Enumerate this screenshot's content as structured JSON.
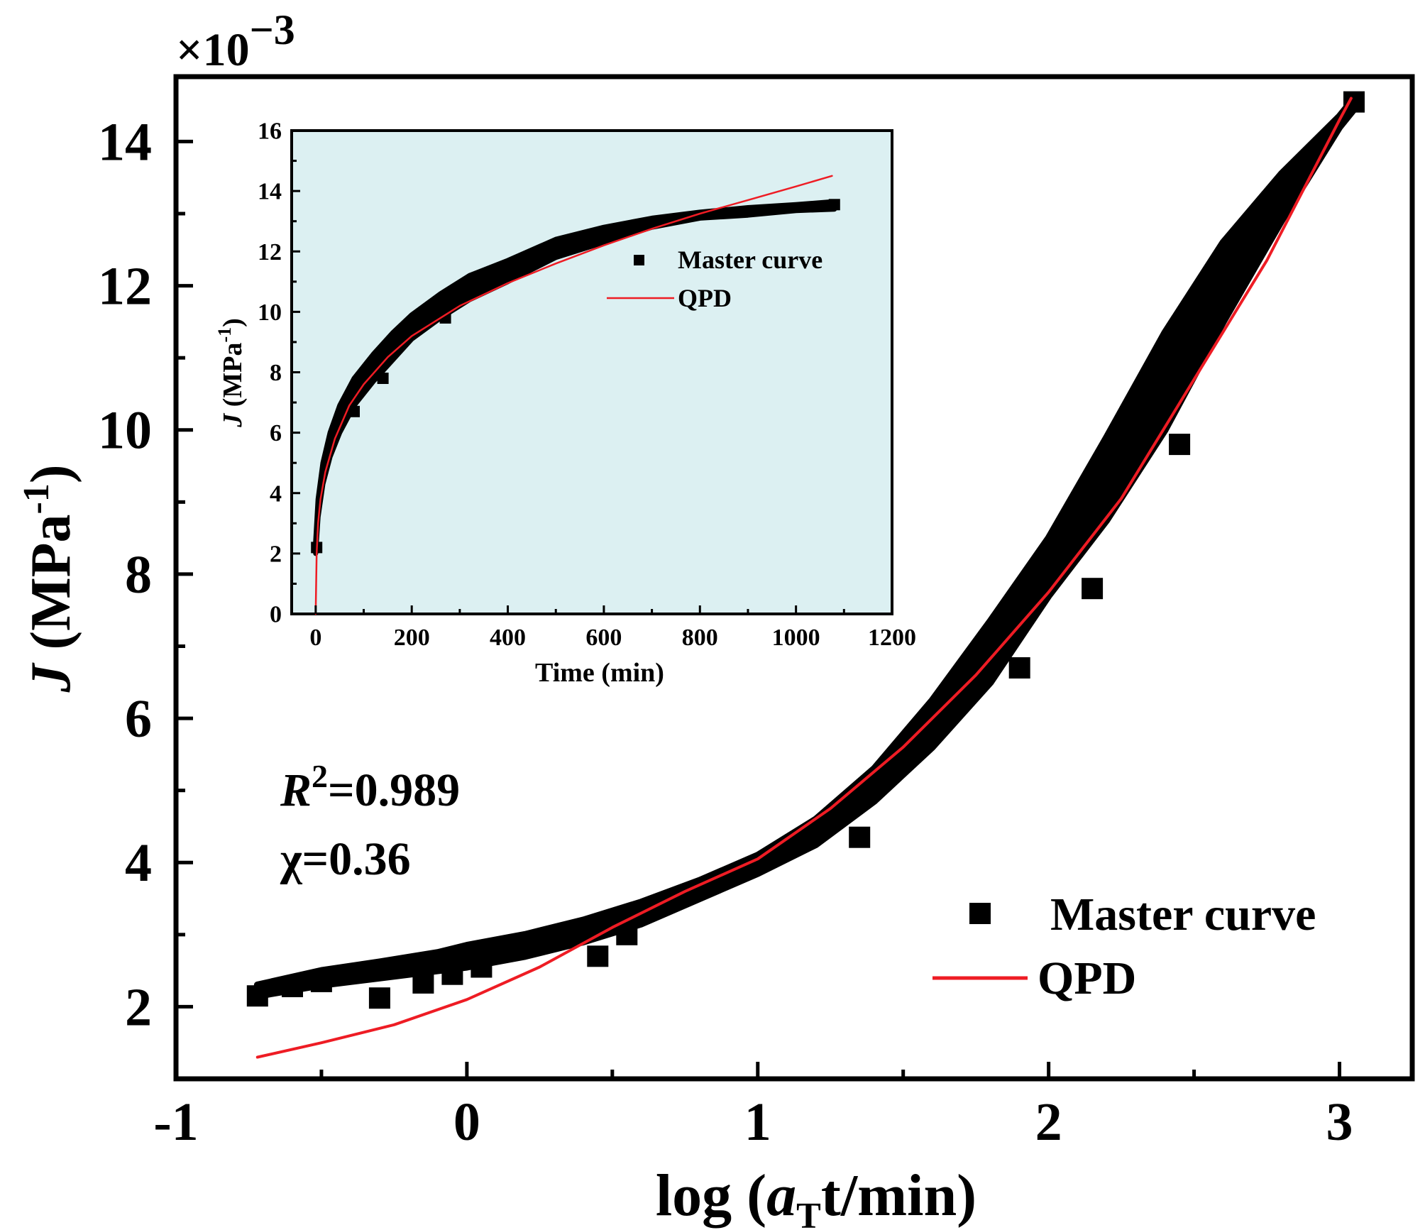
{
  "colors": {
    "data": "#000000",
    "fit": "#ee1c24",
    "inset_background": "#dcf0f2",
    "axis": "#000000"
  },
  "chart_data": [
    {
      "id": "main",
      "type": "scatter",
      "xlabel_prefix": "log (",
      "xlabel_var": "a",
      "xlabel_sub": "T",
      "xlabel_suffix": "t/min)",
      "ylabel_var": "J",
      "ylabel_unit_open": " (MPa",
      "ylabel_unit_sup": "-1",
      "ylabel_unit_close": ")",
      "multiplier_prefix": "×10",
      "multiplier_exp": "−3",
      "xlim": [
        -1,
        3.25
      ],
      "ylim": [
        1.0,
        14.9
      ],
      "xticks": [
        -1,
        0,
        1,
        2,
        3
      ],
      "xtick_labels": [
        "-1",
        "0",
        "1",
        "2",
        "3"
      ],
      "yticks": [
        2,
        4,
        6,
        8,
        10,
        12,
        14
      ],
      "ytick_labels": [
        "2",
        "4",
        "6",
        "8",
        "10",
        "12",
        "14"
      ],
      "legend": [
        {
          "label": "Master curve",
          "kind": "marker"
        },
        {
          "label": "QPD",
          "kind": "line"
        }
      ],
      "legend_position": "bottom-right",
      "annotations": [
        {
          "var": "R",
          "sup": "2",
          "text": "=0.989"
        },
        {
          "var": "χ",
          "sup": "",
          "text": "=0.36"
        }
      ],
      "series": [
        {
          "name": "Master curve",
          "kind": "band",
          "x": [
            -0.72,
            -0.5,
            -0.3,
            -0.1,
            0.0,
            0.2,
            0.4,
            0.6,
            0.8,
            1.0,
            1.2,
            1.4,
            1.6,
            1.8,
            2.0,
            2.2,
            2.4,
            2.6,
            2.8,
            3.0,
            3.05
          ],
          "y_low": [
            2.15,
            2.3,
            2.4,
            2.5,
            2.55,
            2.7,
            2.9,
            3.15,
            3.5,
            3.85,
            4.25,
            4.85,
            5.6,
            6.5,
            7.7,
            8.75,
            10.0,
            11.5,
            12.9,
            14.2,
            14.45
          ],
          "y_high": [
            2.3,
            2.5,
            2.62,
            2.75,
            2.85,
            3.0,
            3.2,
            3.45,
            3.75,
            4.1,
            4.6,
            5.3,
            6.25,
            7.35,
            8.5,
            9.9,
            11.35,
            12.6,
            13.55,
            14.35,
            14.6
          ]
        },
        {
          "name": "Master curve",
          "kind": "markers",
          "x": [
            -0.72,
            -0.6,
            -0.5,
            -0.3,
            -0.15,
            -0.05,
            0.05,
            0.45,
            0.55,
            1.35,
            1.9,
            2.15,
            2.45,
            3.05
          ],
          "y": [
            2.15,
            2.28,
            2.35,
            2.12,
            2.33,
            2.45,
            2.55,
            2.7,
            3.0,
            4.35,
            6.7,
            7.8,
            9.8,
            14.55
          ]
        },
        {
          "name": "QPD",
          "kind": "line",
          "x": [
            -0.72,
            -0.5,
            -0.25,
            0.0,
            0.25,
            0.5,
            0.75,
            1.0,
            1.25,
            1.5,
            1.75,
            2.0,
            2.25,
            2.5,
            2.75,
            3.0,
            3.04
          ],
          "y": [
            1.3,
            1.5,
            1.75,
            2.1,
            2.55,
            3.1,
            3.6,
            4.05,
            4.75,
            5.6,
            6.6,
            7.75,
            9.05,
            10.7,
            12.35,
            14.3,
            14.6
          ]
        }
      ]
    },
    {
      "id": "inset",
      "type": "scatter",
      "xlabel": "Time (min)",
      "ylabel_var": "J",
      "ylabel_unit_open": " (MPa",
      "ylabel_unit_sup": "-1",
      "ylabel_unit_close": ")",
      "xlim": [
        -50,
        1200
      ],
      "ylim": [
        0,
        16
      ],
      "xticks": [
        0,
        200,
        400,
        600,
        800,
        1000,
        1200
      ],
      "xtick_labels": [
        "0",
        "200",
        "400",
        "600",
        "800",
        "1000",
        "1200"
      ],
      "yticks": [
        0,
        2,
        4,
        6,
        8,
        10,
        12,
        14,
        16
      ],
      "ytick_labels": [
        "0",
        "2",
        "4",
        "6",
        "8",
        "10",
        "12",
        "14",
        "16"
      ],
      "legend": [
        {
          "label": "Master curve",
          "kind": "marker"
        },
        {
          "label": "QPD",
          "kind": "line"
        }
      ],
      "legend_position": "upper-right",
      "series": [
        {
          "name": "Master curve",
          "kind": "band",
          "x": [
            0,
            5,
            15,
            30,
            50,
            80,
            120,
            160,
            200,
            260,
            320,
            400,
            500,
            600,
            700,
            800,
            900,
            1000,
            1080
          ],
          "y_low": [
            2.0,
            3.2,
            4.3,
            5.2,
            6.0,
            6.9,
            7.7,
            8.4,
            9.1,
            9.8,
            10.4,
            11.0,
            11.8,
            12.3,
            12.8,
            13.1,
            13.2,
            13.35,
            13.4
          ],
          "y_high": [
            2.4,
            3.8,
            5.0,
            6.0,
            6.9,
            7.8,
            8.6,
            9.3,
            9.9,
            10.6,
            11.2,
            11.7,
            12.4,
            12.8,
            13.1,
            13.3,
            13.45,
            13.55,
            13.65
          ]
        },
        {
          "name": "Master curve",
          "kind": "markers",
          "x": [
            2,
            80,
            140,
            270,
            1080
          ],
          "y": [
            2.2,
            6.7,
            7.8,
            9.8,
            13.55
          ]
        },
        {
          "name": "QPD",
          "kind": "line",
          "x": [
            0,
            2,
            5,
            10,
            20,
            40,
            70,
            100,
            150,
            200,
            300,
            400,
            500,
            600,
            700,
            800,
            900,
            1000,
            1075
          ],
          "y": [
            0.0,
            2.0,
            3.0,
            3.8,
            4.7,
            5.8,
            6.9,
            7.6,
            8.5,
            9.2,
            10.2,
            10.95,
            11.6,
            12.2,
            12.75,
            13.25,
            13.7,
            14.15,
            14.5
          ]
        }
      ]
    }
  ]
}
